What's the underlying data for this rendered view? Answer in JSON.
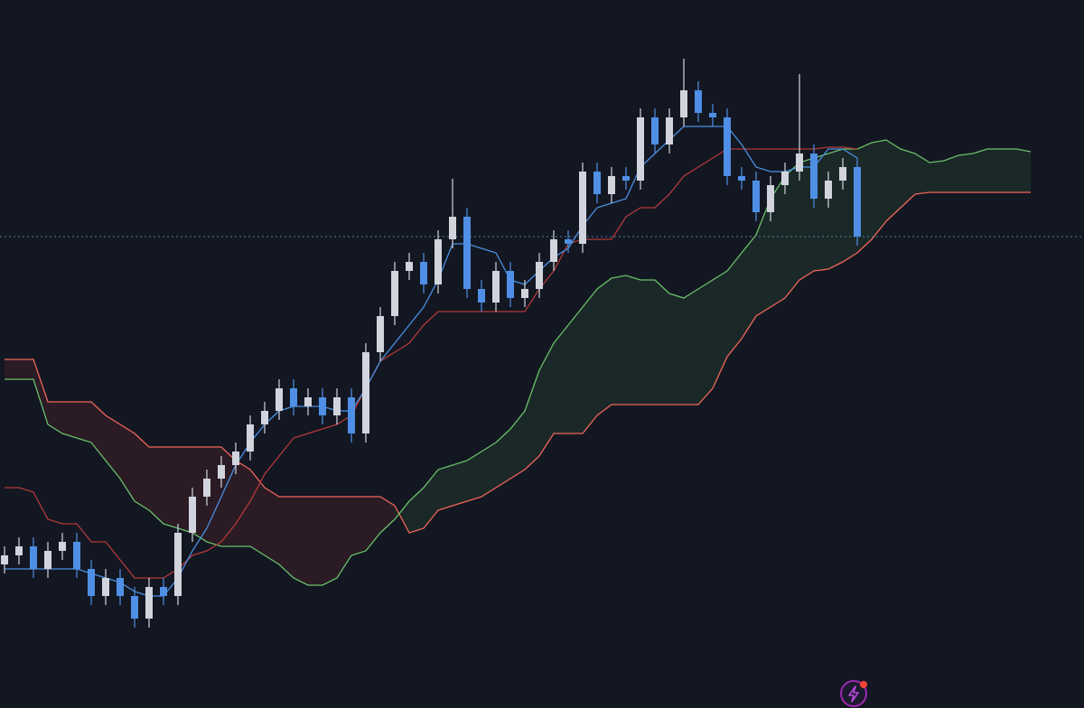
{
  "chart_data": {
    "type": "candlestick",
    "categories": [
      null,
      null,
      null,
      null,
      null,
      null,
      null,
      null,
      null,
      null,
      null,
      null,
      null,
      null,
      null,
      null,
      null,
      null,
      null,
      null,
      null,
      null,
      null,
      null,
      null,
      null,
      null,
      null,
      null,
      null,
      null,
      null,
      null,
      null,
      null,
      null,
      null,
      null,
      null,
      null,
      null,
      null,
      null,
      null,
      null,
      null,
      null,
      null,
      null,
      null,
      null,
      null,
      null,
      null,
      null,
      null,
      null,
      null,
      null,
      null,
      null,
      null,
      null,
      null,
      null,
      null,
      null,
      null,
      null,
      null,
      null,
      null
    ],
    "open": [
      159,
      169,
      179,
      154,
      174,
      184,
      154,
      124,
      144,
      124,
      99,
      134,
      124,
      194,
      234,
      254,
      269,
      284,
      314,
      329,
      354,
      334,
      344,
      324,
      344,
      304,
      394,
      434,
      484,
      494,
      469,
      519,
      544,
      464,
      449,
      484,
      454,
      464,
      494,
      519,
      514,
      594,
      569,
      589,
      584,
      654,
      624,
      654,
      684,
      659,
      654,
      589,
      584,
      549,
      579,
      594,
      614,
      564,
      584,
      599,
      null,
      null,
      null,
      null,
      null,
      null,
      null,
      null,
      null,
      null,
      null,
      null
    ],
    "high": [
      179,
      189,
      189,
      184,
      194,
      194,
      164,
      154,
      154,
      134,
      144,
      144,
      204,
      244,
      264,
      279,
      294,
      324,
      339,
      364,
      364,
      354,
      354,
      354,
      354,
      404,
      444,
      494,
      504,
      504,
      529,
      586,
      554,
      474,
      494,
      494,
      474,
      504,
      529,
      529,
      604,
      604,
      599,
      599,
      664,
      664,
      664,
      719,
      694,
      669,
      664,
      599,
      594,
      589,
      604,
      702,
      624,
      594,
      609,
      609,
      null,
      null,
      null,
      null,
      null,
      null,
      null,
      null,
      null,
      null,
      null,
      null
    ],
    "low": [
      149,
      159,
      144,
      144,
      164,
      144,
      114,
      114,
      114,
      89,
      89,
      114,
      114,
      184,
      224,
      244,
      259,
      274,
      304,
      319,
      324,
      324,
      314,
      314,
      294,
      294,
      384,
      424,
      474,
      459,
      459,
      509,
      454,
      439,
      439,
      444,
      444,
      454,
      484,
      504,
      504,
      559,
      559,
      574,
      574,
      614,
      614,
      644,
      649,
      644,
      579,
      574,
      539,
      539,
      569,
      584,
      554,
      554,
      574,
      512,
      null,
      null,
      null,
      null,
      null,
      null,
      null,
      null,
      null,
      null,
      null,
      null
    ],
    "close": [
      169,
      179,
      154,
      174,
      184,
      154,
      124,
      144,
      124,
      99,
      134,
      124,
      194,
      234,
      254,
      269,
      284,
      314,
      329,
      354,
      334,
      344,
      324,
      344,
      304,
      394,
      434,
      484,
      494,
      469,
      519,
      544,
      464,
      449,
      484,
      454,
      464,
      494,
      519,
      514,
      594,
      569,
      589,
      584,
      654,
      624,
      654,
      684,
      659,
      654,
      589,
      584,
      549,
      579,
      594,
      614,
      564,
      584,
      599,
      522,
      null,
      null,
      null,
      null,
      null,
      null,
      null,
      null,
      null,
      null,
      null,
      null
    ],
    "up_color": "#d1d4dc",
    "down_color": "#4f8fe6",
    "ylim": [
      0,
      784
    ],
    "price_line_color": "#4f7f9e",
    "lines": [
      {
        "color": "#f0665a",
        "values": [
          386,
          386,
          386,
          339,
          339,
          339,
          339,
          324,
          314,
          304,
          289,
          289,
          289,
          289,
          289,
          289,
          274,
          264,
          244,
          234,
          234,
          234,
          234,
          234,
          234,
          234,
          234,
          224,
          194,
          199,
          219,
          224,
          229,
          234,
          244,
          254,
          264,
          279,
          304,
          304,
          304,
          324,
          336,
          336,
          336,
          336,
          336,
          336,
          336,
          354,
          389,
          409,
          434,
          444,
          454,
          474,
          484,
          486,
          494,
          504,
          519,
          539,
          554,
          569,
          571,
          571,
          571,
          571,
          571,
          571,
          571,
          571
        ]
      },
      {
        "color": "#6abf69",
        "values": [
          364,
          364,
          364,
          314,
          304,
          299,
          294,
          274,
          254,
          229,
          219,
          204,
          199,
          194,
          184,
          179,
          179,
          179,
          169,
          159,
          144,
          136,
          136,
          144,
          169,
          174,
          194,
          209,
          229,
          244,
          264,
          269,
          274,
          284,
          294,
          309,
          329,
          374,
          404,
          424,
          444,
          464,
          476,
          479,
          474,
          474,
          459,
          454,
          464,
          474,
          484,
          504,
          524,
          564,
          589,
          604,
          609,
          614,
          619,
          619,
          626,
          629,
          619,
          614,
          604,
          606,
          612,
          614,
          619,
          619,
          619,
          616
        ]
      },
      {
        "color": "#b23a3a",
        "values": [
          244,
          244,
          239,
          209,
          204,
          204,
          184,
          184,
          164,
          144,
          144,
          144,
          154,
          169,
          174,
          184,
          204,
          229,
          259,
          279,
          299,
          304,
          309,
          314,
          324,
          354,
          384,
          394,
          404,
          424,
          439,
          439,
          439,
          439,
          439,
          439,
          439,
          464,
          484,
          514,
          519,
          519,
          519,
          544,
          554,
          554,
          569,
          589,
          599,
          609,
          619,
          619,
          619,
          619,
          619,
          619,
          619,
          621,
          621,
          619,
          null,
          null,
          null,
          null,
          null,
          null,
          null,
          null,
          null,
          null,
          null,
          null
        ]
      },
      {
        "color": "#4a90e2",
        "values": [
          154,
          154,
          154,
          154,
          154,
          154,
          149,
          144,
          139,
          129,
          124,
          124,
          144,
          174,
          199,
          234,
          269,
          294,
          314,
          329,
          334,
          334,
          334,
          329,
          329,
          354,
          384,
          404,
          424,
          444,
          474,
          514,
          514,
          509,
          504,
          474,
          469,
          484,
          499,
          509,
          534,
          554,
          559,
          564,
          599,
          614,
          629,
          644,
          644,
          644,
          644,
          624,
          599,
          594,
          594,
          599,
          599,
          619,
          619,
          609,
          null,
          null,
          null,
          null,
          null,
          null,
          null,
          null,
          null,
          null,
          null,
          null
        ]
      }
    ],
    "cloud": {
      "upper_line": 1,
      "lower_line": 0,
      "up_color": "rgba(67,120,70,0.18)",
      "down_color": "rgba(150,50,55,0.18)"
    }
  }
}
